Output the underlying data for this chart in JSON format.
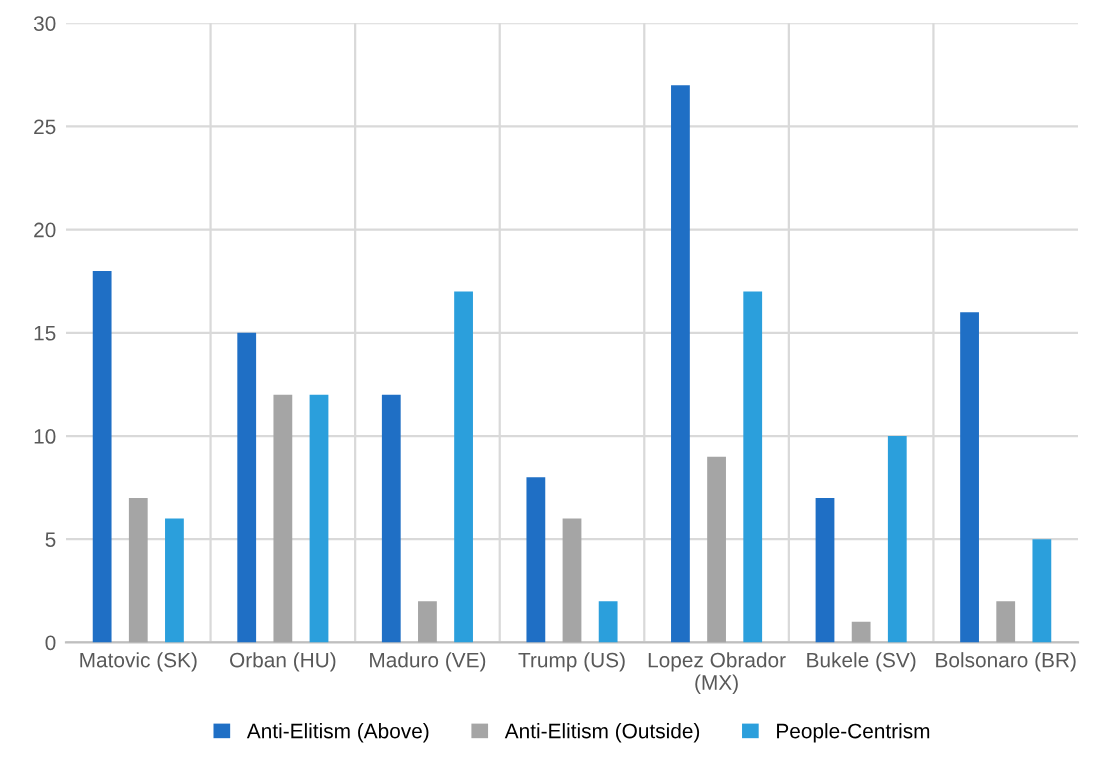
{
  "chart_data": {
    "type": "bar",
    "categories": [
      "Matovic (SK)",
      "Orban (HU)",
      "Maduro (VE)",
      "Trump (US)",
      "Lopez Obrador (MX)",
      "Bukele (SV)",
      "Bolsonaro (BR)"
    ],
    "series": [
      {
        "name": "Anti-Elitism (Above)",
        "color": "#1f6fc5",
        "values": [
          18,
          15,
          12,
          8,
          27,
          7,
          16
        ]
      },
      {
        "name": "Anti-Elitism (Outside)",
        "color": "#a5a5a5",
        "values": [
          7,
          12,
          2,
          6,
          9,
          1,
          2
        ]
      },
      {
        "name": "People-Centrism",
        "color": "#2b9fdc",
        "values": [
          6,
          12,
          17,
          2,
          17,
          10,
          5
        ]
      }
    ],
    "ylim": [
      0,
      30
    ],
    "yticks": [
      0,
      5,
      10,
      15,
      20,
      25,
      30
    ],
    "grid": "y",
    "legend": "bottom"
  }
}
